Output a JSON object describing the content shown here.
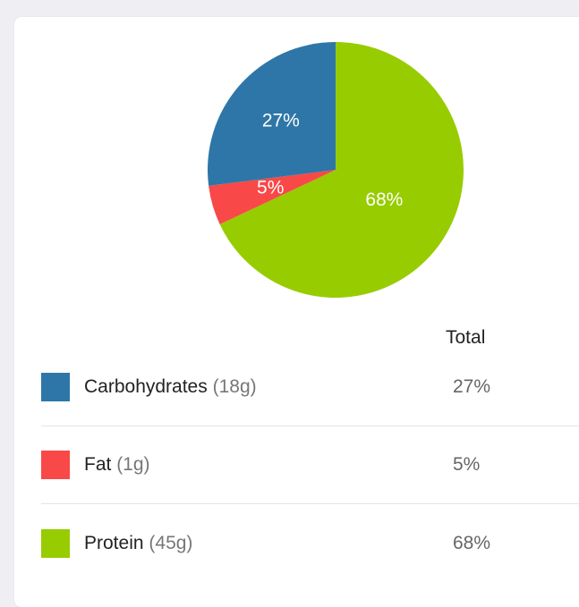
{
  "chart_data": {
    "type": "pie",
    "slices": [
      {
        "label": "Carbohydrates",
        "value": 27,
        "display": "27%",
        "color": "#2e76a8"
      },
      {
        "label": "Fat",
        "value": 5,
        "display": "5%",
        "color": "#f94848"
      },
      {
        "label": "Protein",
        "value": 68,
        "display": "68%",
        "color": "#97cc00"
      }
    ]
  },
  "table": {
    "header_total": "Total",
    "rows": [
      {
        "name": "Carbohydrates",
        "qty": "(18g)",
        "pct": "27%",
        "color": "#2e76a8"
      },
      {
        "name": "Fat",
        "qty": "(1g)",
        "pct": "5%",
        "color": "#f94848"
      },
      {
        "name": "Protein",
        "qty": "(45g)",
        "pct": "68%",
        "color": "#97cc00"
      }
    ]
  }
}
